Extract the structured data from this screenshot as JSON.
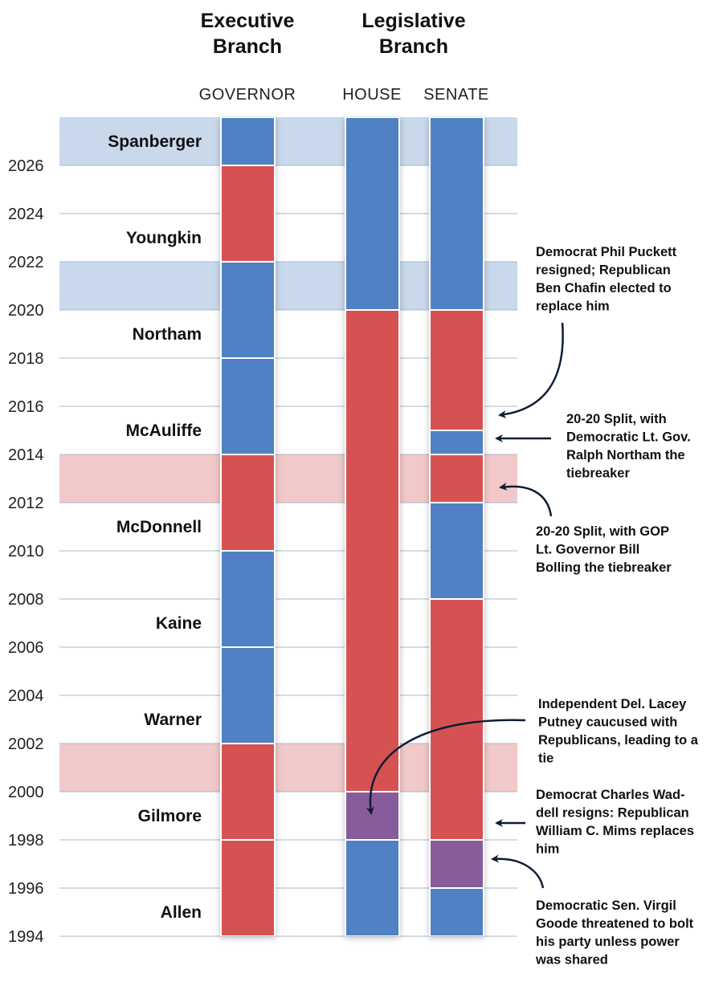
{
  "chart_data": {
    "type": "bar",
    "orientation": "vertical-timeline",
    "headers": [
      {
        "lines": [
          "Executive",
          "Branch"
        ]
      },
      {
        "lines": [
          "Legislative",
          "Branch"
        ]
      }
    ],
    "columns": [
      "GOVERNOR",
      "HOUSE",
      "SENATE"
    ],
    "ylim": [
      1994,
      2028
    ],
    "yticks": [
      1994,
      1996,
      1998,
      2000,
      2002,
      2004,
      2006,
      2008,
      2010,
      2012,
      2014,
      2016,
      2018,
      2020,
      2022,
      2024,
      2026
    ],
    "colors": {
      "D": "#4f81c4",
      "R": "#d65252",
      "T": "#875c9a",
      "band_D": "#c9d8eb",
      "band_R": "#f2c9c9",
      "grid": "#a9b9cc",
      "arrow": "#0f1c36"
    },
    "bands": [
      {
        "from": 2026,
        "to": 2028,
        "party": "D"
      },
      {
        "from": 2020,
        "to": 2022,
        "party": "D"
      },
      {
        "from": 2012,
        "to": 2014,
        "party": "R"
      },
      {
        "from": 2000,
        "to": 2002,
        "party": "R"
      }
    ],
    "governors": [
      {
        "name": "Allen",
        "from": 1994,
        "to": 1998,
        "party": "R"
      },
      {
        "name": "Gilmore",
        "from": 1998,
        "to": 2002,
        "party": "R"
      },
      {
        "name": "Warner",
        "from": 2002,
        "to": 2006,
        "party": "D"
      },
      {
        "name": "Kaine",
        "from": 2006,
        "to": 2010,
        "party": "D"
      },
      {
        "name": "McDonnell",
        "from": 2010,
        "to": 2014,
        "party": "R"
      },
      {
        "name": "McAuliffe",
        "from": 2014,
        "to": 2018,
        "party": "D"
      },
      {
        "name": "Northam",
        "from": 2018,
        "to": 2022,
        "party": "D"
      },
      {
        "name": "Youngkin",
        "from": 2022,
        "to": 2026,
        "party": "R"
      },
      {
        "name": "Spanberger",
        "from": 2026,
        "to": 2028,
        "party": "D"
      }
    ],
    "house": [
      {
        "from": 1994,
        "to": 1998,
        "party": "D"
      },
      {
        "from": 1998,
        "to": 2000,
        "party": "T"
      },
      {
        "from": 2000,
        "to": 2020,
        "party": "R"
      },
      {
        "from": 2020,
        "to": 2028,
        "party": "D"
      }
    ],
    "senate": [
      {
        "from": 1994,
        "to": 1996,
        "party": "D"
      },
      {
        "from": 1996,
        "to": 1998,
        "party": "T"
      },
      {
        "from": 1998,
        "to": 2008,
        "party": "R"
      },
      {
        "from": 2008,
        "to": 2012,
        "party": "D"
      },
      {
        "from": 2012,
        "to": 2014,
        "party": "R"
      },
      {
        "from": 2014,
        "to": 2015,
        "party": "D"
      },
      {
        "from": 2015,
        "to": 2020,
        "party": "R"
      },
      {
        "from": 2020,
        "to": 2028,
        "party": "D"
      }
    ],
    "annotations": [
      {
        "lines": [
          "Democrat Phil Puckett",
          "resigned; Republican",
          "Ben Chafin elected to",
          "replace him"
        ],
        "target": "senate",
        "year": 2015.3
      },
      {
        "lines": [
          "20-20 Split, with",
          "Democratic Lt. Gov.",
          "Ralph Northam the",
          "tiebreaker"
        ],
        "target": "senate",
        "year": 2014.5
      },
      {
        "lines": [
          "20-20 Split, with GOP",
          "Lt. Governor Bill",
          "Bolling the tiebreaker"
        ],
        "target": "senate",
        "year": 2013
      },
      {
        "lines": [
          "Independent Del. Lacey",
          "Putney caucused with",
          "Republicans, leading to a",
          "tie"
        ],
        "target": "house",
        "year": 1999
      },
      {
        "lines": [
          "Democrat Charles Wad-",
          "dell resigns: Republican",
          "William C. Mims replaces",
          "him"
        ],
        "target": "senate",
        "year": 1998.7
      },
      {
        "lines": [
          "Democratic Sen. Virgil",
          "Goode threatened to bolt",
          "his party unless power",
          "was shared"
        ],
        "target": "senate",
        "year": 1997.3
      }
    ]
  }
}
